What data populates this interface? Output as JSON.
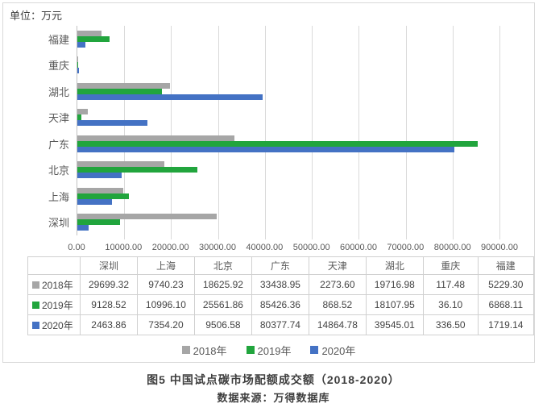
{
  "chart_data": {
    "type": "bar",
    "orientation": "horizontal",
    "unit_label": "单位：万元",
    "xlim": [
      0,
      90000
    ],
    "x_ticks": [
      "0.00",
      "10000.00",
      "20000.00",
      "30000.00",
      "40000.00",
      "50000.00",
      "60000.00",
      "70000.00",
      "80000.00",
      "90000.00"
    ],
    "axis_categories_top_to_bottom": [
      "福建",
      "重庆",
      "湖北",
      "天津",
      "广东",
      "北京",
      "上海",
      "深圳"
    ],
    "table_categories": [
      "深圳",
      "上海",
      "北京",
      "广东",
      "天津",
      "湖北",
      "重庆",
      "福建"
    ],
    "series": [
      {
        "name": "2018年",
        "color": "#a6a6a6",
        "values": [
          29699.32,
          9740.23,
          18625.92,
          33438.95,
          2273.6,
          19716.98,
          117.48,
          5229.3
        ]
      },
      {
        "name": "2019年",
        "color": "#21a53d",
        "values": [
          9128.52,
          10996.1,
          25561.86,
          85426.36,
          868.52,
          18107.95,
          36.1,
          6868.11
        ]
      },
      {
        "name": "2020年",
        "color": "#4472c4",
        "values": [
          2463.86,
          7354.2,
          9506.58,
          80377.74,
          14864.78,
          39545.01,
          336.5,
          1719.14
        ]
      }
    ],
    "grid": true,
    "legend_position": "bottom",
    "legend": [
      "2018年",
      "2019年",
      "2020年"
    ]
  },
  "caption": {
    "title": "图5 中国试点碳市场配额成交额（2018-2020）",
    "source": "数据来源：万得数据库"
  }
}
